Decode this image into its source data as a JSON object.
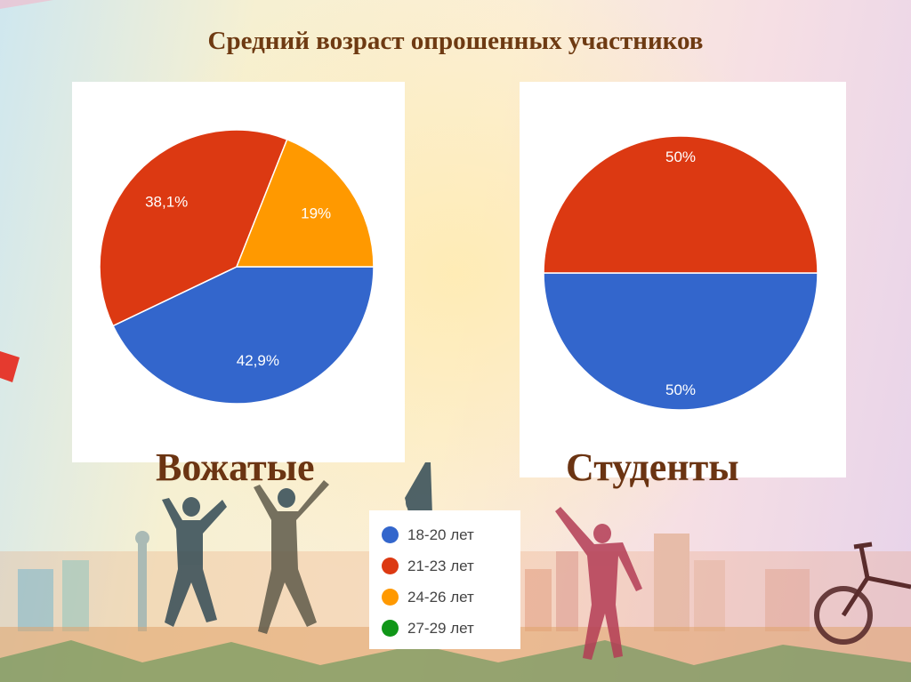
{
  "title": "Средний возраст опрошенных участников",
  "colors": {
    "18-20": "#3366cc",
    "21-23": "#dc3912",
    "24-26": "#ff9900",
    "27-29": "#109618",
    "caption": "#6b3412",
    "title": "#6e3a12"
  },
  "legend": {
    "items": [
      {
        "label": "18-20 лет",
        "color": "#3366cc"
      },
      {
        "label": "21-23 лет",
        "color": "#dc3912"
      },
      {
        "label": "24-26 лет",
        "color": "#ff9900"
      },
      {
        "label": "27-29 лет",
        "color": "#109618"
      }
    ]
  },
  "chart_data": [
    {
      "type": "pie",
      "caption": "Вожатые",
      "slices": [
        {
          "category": "18-20 лет",
          "value": 42.9,
          "label": "42,9%",
          "color": "#3366cc"
        },
        {
          "category": "21-23 лет",
          "value": 38.1,
          "label": "38,1%",
          "color": "#dc3912"
        },
        {
          "category": "24-26 лет",
          "value": 19.0,
          "label": "19%",
          "color": "#ff9900"
        }
      ]
    },
    {
      "type": "pie",
      "caption": "Студенты",
      "slices": [
        {
          "category": "18-20 лет",
          "value": 50,
          "label": "50%",
          "color": "#3366cc"
        },
        {
          "category": "21-23 лет",
          "value": 50,
          "label": "50%",
          "color": "#dc3912"
        }
      ]
    }
  ]
}
